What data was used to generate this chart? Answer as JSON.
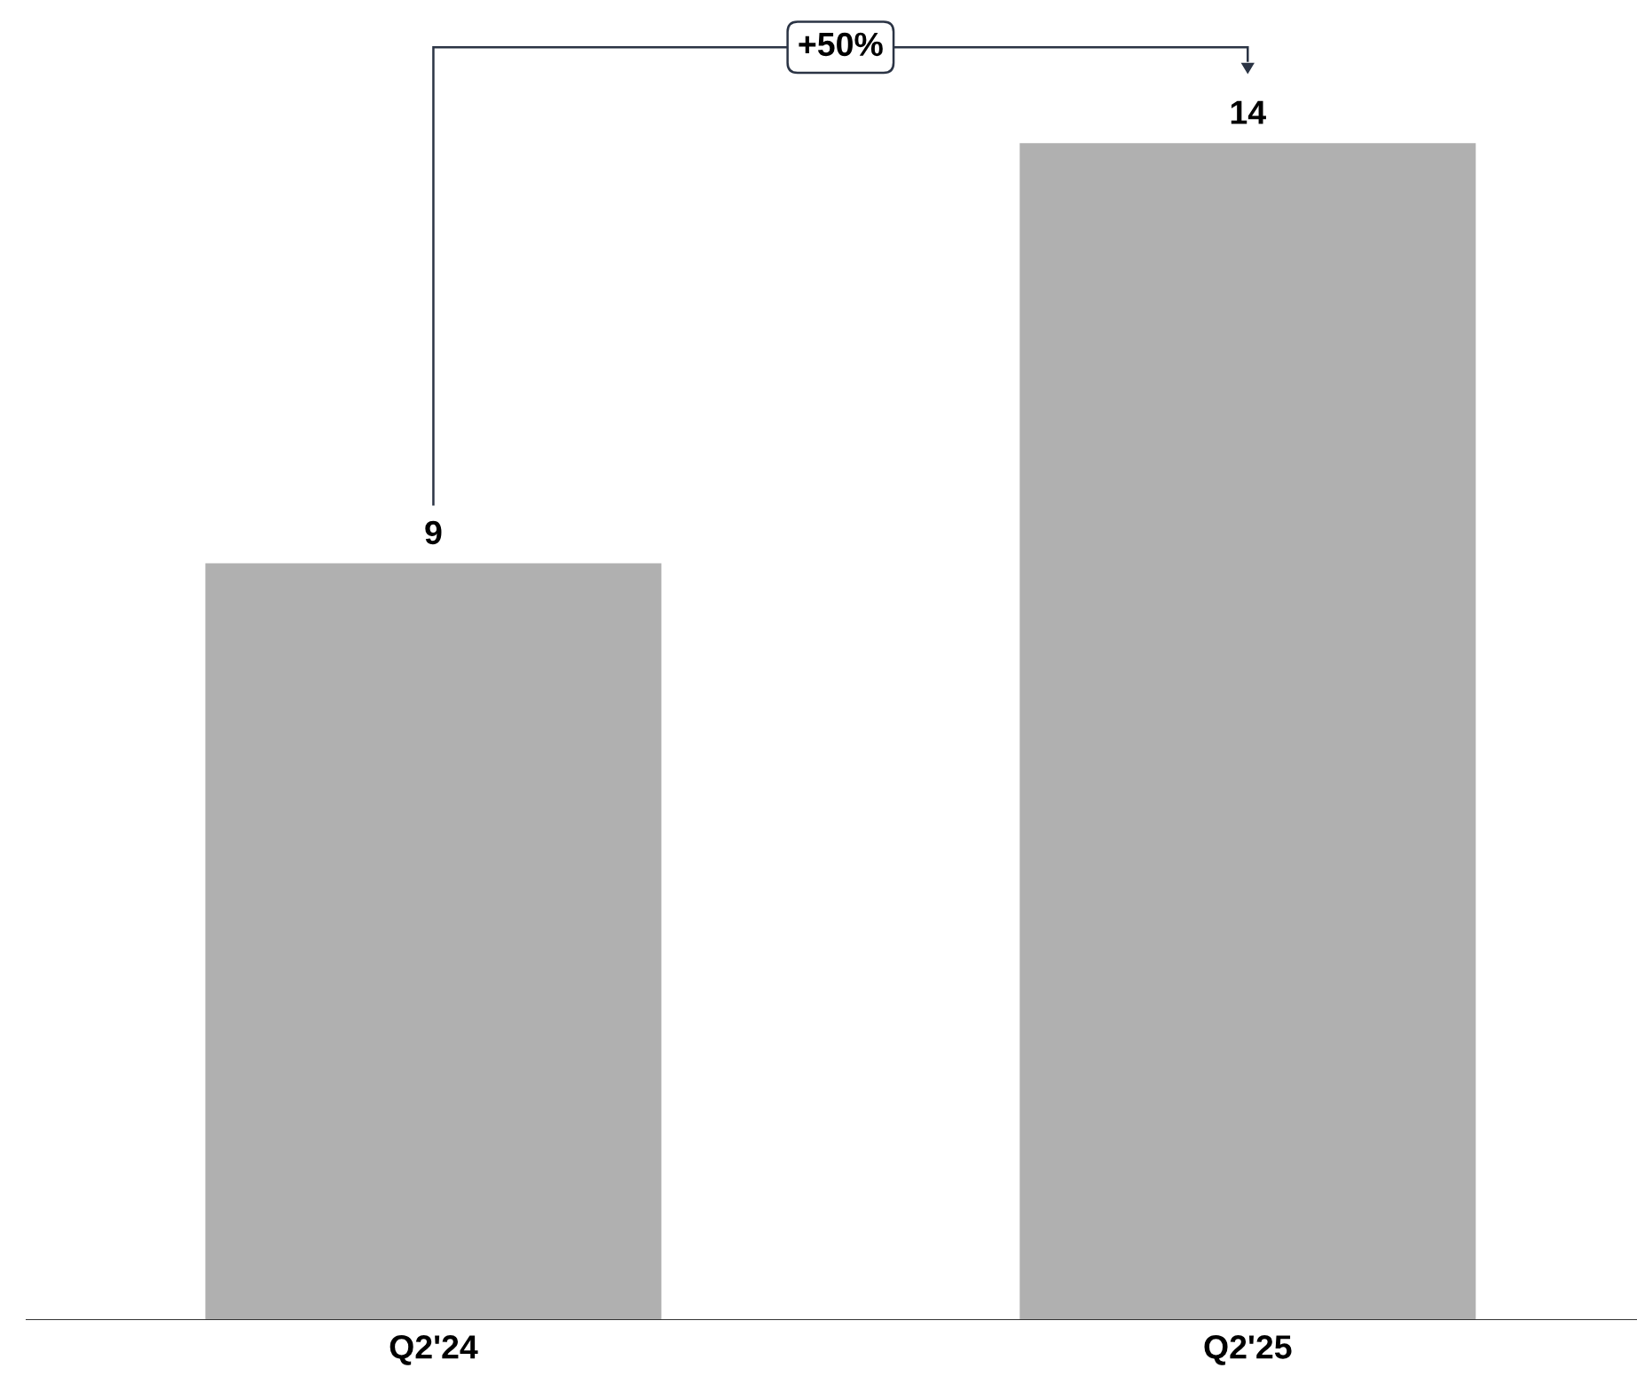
{
  "chart_data": {
    "type": "bar",
    "categories": [
      "Q2'24",
      "Q2'25"
    ],
    "values": [
      9,
      14
    ],
    "color": "#b0b0b0",
    "data_labels": true,
    "grid": false,
    "tick_labels": "x",
    "annotations": [
      "+50%"
    ]
  }
}
